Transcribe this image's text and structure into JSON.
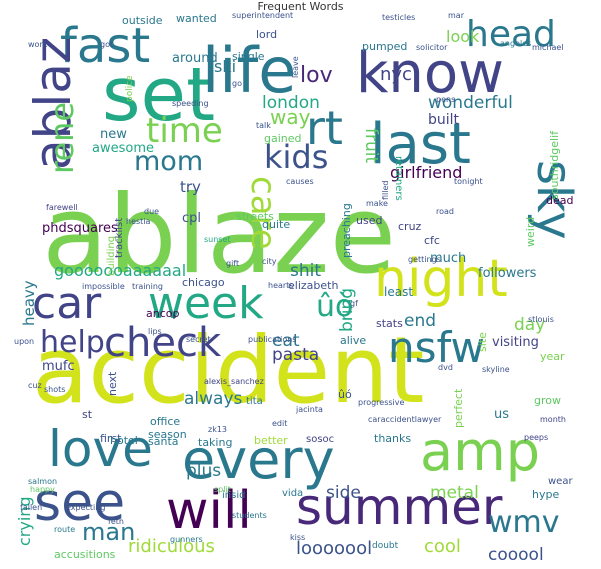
{
  "chart_data": {
    "type": "wordcloud",
    "title": "Frequent Words",
    "background": "#ffffff",
    "palette": "viridis",
    "words": [
      {
        "text": "ablaze",
        "weight": 100,
        "color": "#7ad151"
      },
      {
        "text": "accident",
        "weight": 95,
        "color": "#d2e21b"
      },
      {
        "text": "set",
        "weight": 62,
        "color": "#22a884"
      },
      {
        "text": "life",
        "weight": 58,
        "color": "#2a788e"
      },
      {
        "text": "know",
        "weight": 52,
        "color": "#414487"
      },
      {
        "text": "fast",
        "weight": 45,
        "color": "#2a788e"
      },
      {
        "text": "head",
        "weight": 34,
        "color": "#2a788e"
      },
      {
        "text": "ablaz",
        "weight": 48,
        "color": "#414487"
      },
      {
        "text": "rene",
        "weight": 30,
        "color": "#5ec962"
      },
      {
        "text": "last",
        "weight": 52,
        "color": "#2a788e"
      },
      {
        "text": "rt",
        "weight": 40,
        "color": "#2a788e"
      },
      {
        "text": "care",
        "weight": 32,
        "color": "#a0da39"
      },
      {
        "text": "sky",
        "weight": 45,
        "color": "#2a788e"
      },
      {
        "text": "time",
        "weight": 32,
        "color": "#7ad151"
      },
      {
        "text": "kids",
        "weight": 30,
        "color": "#3b528b"
      },
      {
        "text": "mom",
        "weight": 26,
        "color": "#2a788e"
      },
      {
        "text": "night",
        "weight": 48,
        "color": "#d2e21b"
      },
      {
        "text": "car",
        "weight": 42,
        "color": "#414487"
      },
      {
        "text": "week",
        "weight": 42,
        "color": "#22a884"
      },
      {
        "text": "check",
        "weight": 38,
        "color": "#414487"
      },
      {
        "text": "help",
        "weight": 28,
        "color": "#414487"
      },
      {
        "text": "nsfw",
        "weight": 38,
        "color": "#2a788e"
      },
      {
        "text": "love",
        "weight": 46,
        "color": "#2a788e"
      },
      {
        "text": "every",
        "weight": 50,
        "color": "#2a788e"
      },
      {
        "text": "amp",
        "weight": 50,
        "color": "#7ad151"
      },
      {
        "text": "see",
        "weight": 48,
        "color": "#3b528b"
      },
      {
        "text": "will",
        "weight": 46,
        "color": "#440154"
      },
      {
        "text": "summer",
        "weight": 46,
        "color": "#482878"
      },
      {
        "text": "wmv",
        "weight": 28,
        "color": "#2a788e"
      },
      {
        "text": "man",
        "weight": 22,
        "color": "#2a788e"
      },
      {
        "text": "ridiculous",
        "weight": 17,
        "color": "#a0da39"
      },
      {
        "text": "looooool",
        "weight": 17,
        "color": "#3b528b"
      },
      {
        "text": "cool",
        "weight": 17,
        "color": "#a0da39"
      },
      {
        "text": "cooool",
        "weight": 17,
        "color": "#3b528b"
      },
      {
        "text": "gooooooaaaaaal",
        "weight": 15,
        "color": "#22a884"
      },
      {
        "text": "wonderful",
        "weight": 16,
        "color": "#2a788e"
      },
      {
        "text": "girlfriend",
        "weight": 16,
        "color": "#440154"
      },
      {
        "text": "lov",
        "weight": 20,
        "color": "#482878"
      },
      {
        "text": "nyc",
        "weight": 18,
        "color": "#414487"
      },
      {
        "text": "look",
        "weight": 16,
        "color": "#7ad151"
      },
      {
        "text": "ski",
        "weight": 16,
        "color": "#2a788e"
      },
      {
        "text": "way",
        "weight": 18,
        "color": "#7ad151"
      },
      {
        "text": "london",
        "weight": 16,
        "color": "#22a884"
      },
      {
        "text": "fruit",
        "weight": 16,
        "color": "#5ec962"
      },
      {
        "text": "built",
        "weight": 14,
        "color": "#414487"
      },
      {
        "text": "shit",
        "weight": 16,
        "color": "#2a788e"
      },
      {
        "text": "eat",
        "weight": 16,
        "color": "#2a788e"
      },
      {
        "text": "pasta",
        "weight": 16,
        "color": "#414487"
      },
      {
        "text": "end",
        "weight": 16,
        "color": "#2a788e"
      },
      {
        "text": "day",
        "weight": 16,
        "color": "#7ad151"
      },
      {
        "text": "always",
        "weight": 16,
        "color": "#2a788e"
      },
      {
        "text": "plus",
        "weight": 16,
        "color": "#2a788e"
      },
      {
        "text": "side",
        "weight": 16,
        "color": "#3b528b"
      },
      {
        "text": "metal",
        "weight": 16,
        "color": "#7ad151"
      },
      {
        "text": "crying",
        "weight": 15,
        "color": "#22a884"
      },
      {
        "text": "heavy",
        "weight": 14,
        "color": "#2a788e"
      },
      {
        "text": "bring",
        "weight": 16,
        "color": "#22a884"
      },
      {
        "text": "ûò",
        "weight": 28,
        "color": "#22a884"
      },
      {
        "text": "try",
        "weight": 14,
        "color": "#3b528b"
      },
      {
        "text": "cpl",
        "weight": 12,
        "color": "#3b528b"
      },
      {
        "text": "mufc",
        "weight": 12,
        "color": "#414487"
      },
      {
        "text": "new",
        "weight": 12,
        "color": "#2a788e"
      },
      {
        "text": "awesome",
        "weight": 12,
        "color": "#22a884"
      },
      {
        "text": "phdsquares",
        "weight": 12,
        "color": "#440154"
      },
      {
        "text": "visiting",
        "weight": 12,
        "color": "#414487"
      },
      {
        "text": "followers",
        "weight": 12,
        "color": "#2a788e"
      },
      {
        "text": "elizabeth",
        "weight": 10,
        "color": "#3b528b"
      },
      {
        "text": "chicago",
        "weight": 10,
        "color": "#3b528b"
      },
      {
        "text": "ancop",
        "weight": 10,
        "color": "#440154"
      },
      {
        "text": "much",
        "weight": 12,
        "color": "#2a788e"
      },
      {
        "text": "least",
        "weight": 11,
        "color": "#2a788e"
      },
      {
        "text": "stats",
        "weight": 10,
        "color": "#414487"
      },
      {
        "text": "alive",
        "weight": 10,
        "color": "#2a788e"
      },
      {
        "text": "cfc",
        "weight": 10,
        "color": "#414487"
      },
      {
        "text": "cruz",
        "weight": 10,
        "color": "#414487"
      },
      {
        "text": "preaching",
        "weight": 10,
        "color": "#2a788e"
      },
      {
        "text": "streets",
        "weight": 10,
        "color": "#5ec962"
      },
      {
        "text": "quite",
        "weight": 10,
        "color": "#2a788e"
      },
      {
        "text": "used",
        "weight": 10,
        "color": "#414487"
      },
      {
        "text": "dead",
        "weight": 10,
        "color": "#440154"
      },
      {
        "text": "weird",
        "weight": 10,
        "color": "#5ec962"
      },
      {
        "text": "southridgelif",
        "weight": 10,
        "color": "#5ec962"
      },
      {
        "text": "tracklist",
        "weight": 9,
        "color": "#414487"
      },
      {
        "text": "building",
        "weight": 9,
        "color": "#7ad151"
      },
      {
        "text": "retainers",
        "weight": 9,
        "color": "#22a884"
      },
      {
        "text": "outside",
        "weight": 10,
        "color": "#2a788e"
      },
      {
        "text": "wanted",
        "weight": 10,
        "color": "#2a788e"
      },
      {
        "text": "around",
        "weight": 12,
        "color": "#2a788e"
      },
      {
        "text": "single",
        "weight": 10,
        "color": "#2a788e"
      },
      {
        "text": "lord",
        "weight": 10,
        "color": "#3b528b"
      },
      {
        "text": "pumped",
        "weight": 10,
        "color": "#2a788e"
      },
      {
        "text": "gained",
        "weight": 10,
        "color": "#5ec962"
      },
      {
        "text": "police",
        "weight": 8,
        "color": "#7ad151"
      },
      {
        "text": "office",
        "weight": 10,
        "color": "#2a788e"
      },
      {
        "text": "season",
        "weight": 10,
        "color": "#2a788e"
      },
      {
        "text": "next",
        "weight": 10,
        "color": "#3b528b"
      },
      {
        "text": "first",
        "weight": 10,
        "color": "#3b528b"
      },
      {
        "text": "hotel",
        "weight": 10,
        "color": "#2a788e"
      },
      {
        "text": "santa",
        "weight": 10,
        "color": "#2a788e"
      },
      {
        "text": "taking",
        "weight": 10,
        "color": "#2a788e"
      },
      {
        "text": "better",
        "weight": 10,
        "color": "#a0da39"
      },
      {
        "text": "sosoc",
        "weight": 9,
        "color": "#414487"
      },
      {
        "text": "thanks",
        "weight": 10,
        "color": "#2a788e"
      },
      {
        "text": "perfect",
        "weight": 10,
        "color": "#7ad151"
      },
      {
        "text": "us",
        "weight": 12,
        "color": "#2a788e"
      },
      {
        "text": "grow",
        "weight": 10,
        "color": "#5ec962"
      },
      {
        "text": "hype",
        "weight": 10,
        "color": "#2a788e"
      },
      {
        "text": "wear",
        "weight": 9,
        "color": "#3b528b"
      },
      {
        "text": "year",
        "weight": 10,
        "color": "#7ad151"
      },
      {
        "text": "site",
        "weight": 10,
        "color": "#7ad151"
      },
      {
        "text": "ûó",
        "weight": 10,
        "color": "#3b528b"
      },
      {
        "text": "tita",
        "weight": 9,
        "color": "#2a788e"
      },
      {
        "text": "st",
        "weight": 10,
        "color": "#414487"
      },
      {
        "text": "vida",
        "weight": 9,
        "color": "#2a788e"
      },
      {
        "text": "insid",
        "weight": 9,
        "color": "#2a788e"
      },
      {
        "text": "accusitions",
        "weight": 10,
        "color": "#5ec962"
      },
      {
        "text": "doubt",
        "weight": 8,
        "color": "#2a788e"
      },
      {
        "text": "expecting",
        "weight": 7,
        "color": "#3b528b"
      },
      {
        "text": "happy",
        "weight": 7,
        "color": "#5ec962"
      },
      {
        "text": "salmon",
        "weight": 7,
        "color": "#2a788e"
      },
      {
        "text": "fallen",
        "weight": 7,
        "color": "#3b528b"
      },
      {
        "text": "route",
        "weight": 7,
        "color": "#2a788e"
      },
      {
        "text": "gunners",
        "weight": 7,
        "color": "#2a788e"
      },
      {
        "text": "students",
        "weight": 7,
        "color": "#2a788e"
      },
      {
        "text": "split",
        "weight": 7,
        "color": "#5ec962"
      },
      {
        "text": "impossible",
        "weight": 7,
        "color": "#3b528b"
      },
      {
        "text": "training",
        "weight": 7,
        "color": "#3b528b"
      },
      {
        "text": "farewell",
        "weight": 7,
        "color": "#414487"
      },
      {
        "text": "alexis_sanchez",
        "weight": 7,
        "color": "#414487"
      },
      {
        "text": "jacinta",
        "weight": 7,
        "color": "#3b528b"
      },
      {
        "text": "caraccidentlawyer",
        "weight": 7,
        "color": "#3b528b"
      },
      {
        "text": "progressive",
        "weight": 7,
        "color": "#3b528b"
      },
      {
        "text": "publications",
        "weight": 7,
        "color": "#3b528b"
      },
      {
        "text": "secret",
        "weight": 7,
        "color": "#3b528b"
      },
      {
        "text": "hearts",
        "weight": 7,
        "color": "#3b528b"
      },
      {
        "text": "sunset",
        "weight": 7,
        "color": "#22a884"
      },
      {
        "text": "stlouis",
        "weight": 7,
        "color": "#3b528b"
      },
      {
        "text": "skyline",
        "weight": 7,
        "color": "#3b528b"
      },
      {
        "text": "month",
        "weight": 7,
        "color": "#414487"
      },
      {
        "text": "peeps",
        "weight": 7,
        "color": "#414487"
      },
      {
        "text": "make",
        "weight": 7,
        "color": "#3b528b"
      },
      {
        "text": "causes",
        "weight": 7,
        "color": "#3b528b"
      },
      {
        "text": "tonight",
        "weight": 7,
        "color": "#3b528b"
      },
      {
        "text": "hestia",
        "weight": 7,
        "color": "#3b528b"
      },
      {
        "text": "speeding",
        "weight": 7,
        "color": "#3b528b"
      },
      {
        "text": "superintendent",
        "weight": 7,
        "color": "#3b528b"
      },
      {
        "text": "testicles",
        "weight": 7,
        "color": "#3b528b"
      },
      {
        "text": "solicitor",
        "weight": 7,
        "color": "#3b528b"
      },
      {
        "text": "angeles",
        "weight": 7,
        "color": "#2a788e"
      },
      {
        "text": "michael",
        "weight": 7,
        "color": "#3b528b"
      },
      {
        "text": "work",
        "weight": 7,
        "color": "#3b528b"
      },
      {
        "text": "got",
        "weight": 7,
        "color": "#3b528b"
      },
      {
        "text": "leave",
        "weight": 7,
        "color": "#3b528b"
      },
      {
        "text": "kiss",
        "weight": 7,
        "color": "#3b528b"
      },
      {
        "text": "feth",
        "weight": 7,
        "color": "#3b528b"
      },
      {
        "text": "dvd",
        "weight": 7,
        "color": "#3b528b"
      },
      {
        "text": "lips",
        "weight": 7,
        "color": "#3b528b"
      },
      {
        "text": "gettings",
        "weight": 7,
        "color": "#3b528b"
      },
      {
        "text": "road",
        "weight": 7,
        "color": "#3b528b"
      },
      {
        "text": "due",
        "weight": 7,
        "color": "#3b528b"
      },
      {
        "text": "city",
        "weight": 7,
        "color": "#3b528b"
      },
      {
        "text": "filled",
        "weight": 7,
        "color": "#3b528b"
      },
      {
        "text": "pens",
        "weight": 7,
        "color": "#3b528b"
      },
      {
        "text": "mar",
        "weight": 7,
        "color": "#3b528b"
      },
      {
        "text": "go",
        "weight": 7,
        "color": "#3b528b"
      },
      {
        "text": "cuz",
        "weight": 7,
        "color": "#3b528b"
      },
      {
        "text": "upon",
        "weight": 7,
        "color": "#3b528b"
      },
      {
        "text": "edit",
        "weight": 7,
        "color": "#3b528b"
      },
      {
        "text": "zk13",
        "weight": 7,
        "color": "#3b528b"
      },
      {
        "text": "shots",
        "weight": 7,
        "color": "#3b528b"
      },
      {
        "text": "gf",
        "weight": 7,
        "color": "#3b528b"
      },
      {
        "text": "gift",
        "weight": 7,
        "color": "#3b528b"
      },
      {
        "text": "talk",
        "weight": 7,
        "color": "#3b528b"
      }
    ]
  }
}
